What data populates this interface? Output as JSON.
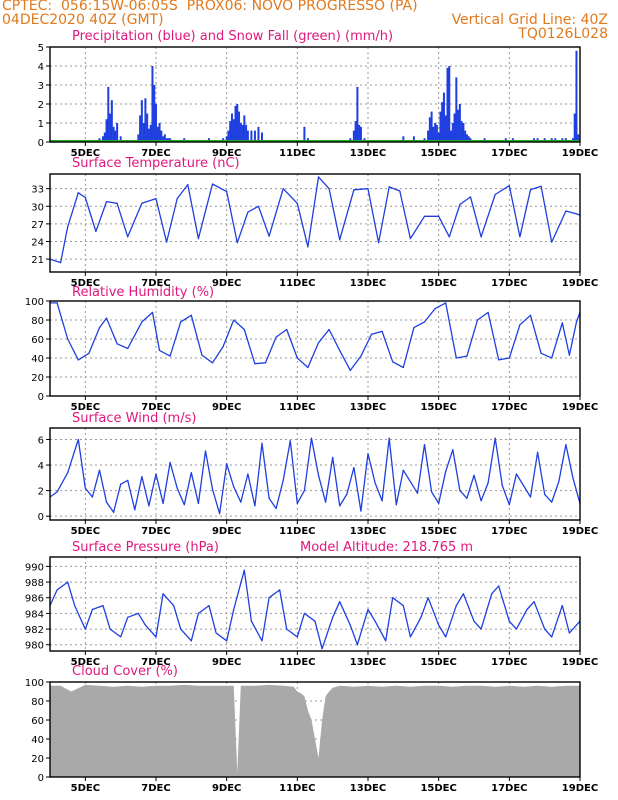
{
  "header": {
    "left1": "CPTEC:  056:15W-06:05S  PROX06: NOVO PROGRESSO (PA)",
    "left2": "04DEC2020 40Z (GMT)",
    "right1": "Vertical Grid Line: 40Z",
    "right2": "TQ0126L028"
  },
  "colors": {
    "header": "#e07a1f",
    "title": "#e0177d",
    "line": "#1f3fe0",
    "bar": "#1f3fe0",
    "snow": "#22aa22",
    "cloud": "#a9a9a9",
    "grid": "#9a9a9a"
  },
  "x_tick_labels": [
    "5DEC",
    "7DEC",
    "9DEC",
    "11DEC",
    "13DEC",
    "15DEC",
    "17DEC",
    "19DEC"
  ],
  "chart_data": [
    {
      "id": "precip",
      "type": "bar",
      "title": "Precipitation (blue) and Snow Fall (green) (mm/h)",
      "ylim": [
        0,
        5
      ],
      "yticks": [
        0,
        1,
        2,
        3,
        4,
        5
      ],
      "x_days": [
        5.3,
        5.4,
        5.5,
        5.55,
        5.6,
        5.65,
        5.7,
        5.75,
        5.8,
        5.85,
        5.9,
        6.0,
        6.5,
        6.55,
        6.6,
        6.65,
        6.7,
        6.75,
        6.8,
        6.85,
        6.9,
        6.95,
        7.0,
        7.05,
        7.1,
        7.15,
        7.2,
        7.25,
        7.3,
        7.35,
        7.4,
        7.8,
        8.3,
        8.5,
        8.9,
        9.0,
        9.05,
        9.1,
        9.15,
        9.2,
        9.25,
        9.3,
        9.35,
        9.4,
        9.45,
        9.5,
        9.55,
        9.6,
        9.7,
        9.8,
        9.9,
        10.0,
        11.2,
        11.3,
        12.5,
        12.6,
        12.65,
        12.7,
        12.75,
        12.8,
        12.9,
        14.0,
        14.3,
        14.6,
        14.7,
        14.75,
        14.8,
        14.85,
        14.9,
        14.95,
        15.0,
        15.05,
        15.1,
        15.15,
        15.2,
        15.25,
        15.3,
        15.35,
        15.4,
        15.45,
        15.5,
        15.55,
        15.6,
        15.65,
        15.7,
        15.75,
        15.8,
        15.85,
        15.9,
        16.3,
        16.7,
        16.9,
        17.1,
        17.4,
        17.7,
        17.8,
        17.9,
        18.0,
        18.1,
        18.2,
        18.3,
        18.4,
        18.5,
        18.6,
        18.7,
        18.8,
        18.85,
        18.9,
        18.95
      ],
      "values": [
        0.1,
        0.2,
        0.3,
        0.5,
        1.2,
        2.9,
        1.5,
        2.2,
        0.8,
        0.6,
        1.0,
        0.3,
        0.4,
        1.4,
        2.2,
        1.0,
        2.3,
        1.5,
        0.7,
        0.9,
        4.0,
        3.0,
        2.0,
        0.8,
        1.0,
        0.6,
        0.3,
        0.4,
        0.2,
        0.2,
        0.2,
        0.2,
        0.1,
        0.2,
        0.2,
        0.3,
        0.6,
        1.1,
        1.5,
        1.2,
        1.9,
        2.0,
        1.6,
        1.0,
        0.9,
        1.4,
        0.9,
        0.6,
        0.6,
        0.6,
        0.8,
        0.5,
        0.8,
        0.2,
        0.2,
        0.6,
        1.1,
        2.9,
        0.9,
        0.8,
        0.2,
        0.3,
        0.3,
        0.2,
        0.6,
        1.3,
        1.6,
        0.8,
        1.0,
        0.9,
        0.5,
        1.6,
        2.1,
        2.6,
        1.4,
        3.9,
        4.0,
        0.6,
        1.0,
        1.5,
        3.4,
        1.7,
        2.0,
        1.1,
        1.0,
        0.6,
        0.4,
        0.3,
        0.2,
        0.2,
        0.1,
        0.2,
        0.2,
        0.1,
        0.2,
        0.2,
        0.1,
        0.2,
        0.1,
        0.2,
        0.2,
        0.1,
        0.2,
        0.2,
        0.1,
        0.2,
        1.5,
        4.8,
        0.4
      ],
      "snow": 0
    },
    {
      "id": "temp",
      "type": "line",
      "title": "Surface Temperature (nC)",
      "ylim": [
        18.8,
        35.5
      ],
      "yticks": [
        21,
        24,
        27,
        30,
        33
      ],
      "x": [
        4.0,
        4.3,
        4.5,
        4.8,
        5.0,
        5.3,
        5.6,
        5.9,
        6.2,
        6.6,
        7.0,
        7.3,
        7.6,
        7.9,
        8.2,
        8.6,
        9.0,
        9.3,
        9.6,
        9.9,
        10.2,
        10.6,
        11.0,
        11.3,
        11.6,
        11.9,
        12.2,
        12.6,
        13.0,
        13.3,
        13.6,
        13.9,
        14.2,
        14.6,
        15.0,
        15.3,
        15.6,
        15.9,
        16.2,
        16.6,
        17.0,
        17.3,
        17.6,
        17.9,
        18.2,
        18.6,
        18.9,
        19.0
      ],
      "y": [
        21.0,
        20.4,
        26.5,
        32.3,
        31.5,
        25.7,
        30.8,
        30.5,
        24.8,
        30.5,
        31.3,
        23.9,
        31.3,
        33.7,
        24.5,
        33.8,
        32.5,
        23.8,
        29.0,
        30.0,
        24.9,
        33.0,
        30.5,
        23.1,
        35.0,
        33.0,
        24.3,
        32.8,
        33.0,
        23.8,
        33.3,
        32.6,
        24.5,
        28.3,
        28.3,
        24.8,
        30.3,
        31.6,
        24.8,
        32.0,
        33.5,
        24.8,
        32.8,
        33.4,
        23.9,
        29.2,
        28.7,
        28.5
      ]
    },
    {
      "id": "rh",
      "type": "line",
      "title": "Relative Humidity (%)",
      "ylim": [
        0,
        100
      ],
      "yticks": [
        0,
        20,
        40,
        60,
        80,
        100
      ],
      "x": [
        4.0,
        4.2,
        4.5,
        4.8,
        5.1,
        5.4,
        5.6,
        5.9,
        6.2,
        6.6,
        6.9,
        7.1,
        7.4,
        7.7,
        8.0,
        8.3,
        8.6,
        8.9,
        9.2,
        9.5,
        9.8,
        10.1,
        10.4,
        10.7,
        11.0,
        11.3,
        11.6,
        11.9,
        12.2,
        12.5,
        12.8,
        13.1,
        13.4,
        13.7,
        14.0,
        14.3,
        14.6,
        14.9,
        15.2,
        15.5,
        15.8,
        16.1,
        16.4,
        16.7,
        17.0,
        17.3,
        17.6,
        17.9,
        18.2,
        18.5,
        18.7,
        18.9,
        19.0
      ],
      "y": [
        98,
        98,
        60,
        38,
        45,
        72,
        82,
        55,
        50,
        78,
        88,
        48,
        42,
        78,
        85,
        43,
        35,
        52,
        80,
        70,
        34,
        35,
        62,
        70,
        40,
        30,
        56,
        70,
        48,
        27,
        42,
        65,
        68,
        36,
        30,
        72,
        78,
        92,
        98,
        40,
        42,
        80,
        88,
        38,
        40,
        75,
        85,
        45,
        40,
        77,
        43,
        78,
        88
      ]
    },
    {
      "id": "wind",
      "type": "line",
      "title": "Surface Wind (m/s)",
      "ylim": [
        -0.3,
        6.9
      ],
      "yticks": [
        0,
        2,
        4,
        6
      ],
      "x": [
        4.0,
        4.2,
        4.5,
        4.8,
        5.0,
        5.2,
        5.4,
        5.6,
        5.8,
        6.0,
        6.2,
        6.4,
        6.6,
        6.8,
        7.0,
        7.2,
        7.4,
        7.6,
        7.8,
        8.0,
        8.2,
        8.4,
        8.6,
        8.8,
        9.0,
        9.2,
        9.4,
        9.6,
        9.8,
        10.0,
        10.2,
        10.4,
        10.6,
        10.8,
        11.0,
        11.2,
        11.4,
        11.6,
        11.8,
        12.0,
        12.2,
        12.4,
        12.6,
        12.8,
        13.0,
        13.2,
        13.4,
        13.6,
        13.8,
        14.0,
        14.2,
        14.4,
        14.6,
        14.8,
        15.0,
        15.2,
        15.4,
        15.6,
        15.8,
        16.0,
        16.2,
        16.4,
        16.6,
        16.8,
        17.0,
        17.2,
        17.4,
        17.6,
        17.8,
        18.0,
        18.2,
        18.4,
        18.6,
        18.8,
        19.0
      ],
      "y": [
        1.5,
        1.9,
        3.4,
        6.0,
        2.2,
        1.5,
        3.6,
        1.1,
        0.3,
        2.5,
        2.8,
        0.5,
        3.1,
        0.8,
        3.3,
        1.0,
        4.2,
        2.2,
        0.9,
        3.4,
        1.0,
        5.1,
        2.1,
        0.2,
        4.1,
        2.3,
        1.1,
        3.3,
        0.8,
        5.7,
        1.4,
        0.6,
        2.8,
        5.9,
        1.0,
        2.0,
        6.1,
        3.2,
        1.1,
        4.6,
        0.8,
        1.7,
        3.8,
        0.4,
        4.9,
        2.6,
        1.2,
        6.1,
        0.9,
        3.6,
        2.7,
        1.8,
        5.6,
        1.9,
        1.0,
        3.5,
        5.2,
        2.0,
        1.4,
        3.2,
        1.2,
        2.6,
        6.1,
        2.4,
        0.9,
        3.3,
        2.4,
        1.5,
        5.0,
        1.7,
        1.1,
        2.7,
        5.6,
        3.0,
        1.0
      ]
    },
    {
      "id": "pres",
      "type": "line",
      "title": "Surface Pressure (hPa)",
      "annotation": "Model Altitude: 218.765 m",
      "ylim": [
        979.2,
        991.2
      ],
      "yticks": [
        980,
        982,
        984,
        986,
        988,
        990
      ],
      "x": [
        4.0,
        4.2,
        4.5,
        4.7,
        5.0,
        5.2,
        5.5,
        5.7,
        6.0,
        6.2,
        6.5,
        6.7,
        7.0,
        7.2,
        7.5,
        7.7,
        8.0,
        8.2,
        8.5,
        8.7,
        9.0,
        9.2,
        9.5,
        9.7,
        10.0,
        10.2,
        10.5,
        10.7,
        11.0,
        11.2,
        11.5,
        11.7,
        12.0,
        12.2,
        12.5,
        12.7,
        13.0,
        13.2,
        13.5,
        13.7,
        14.0,
        14.2,
        14.5,
        14.7,
        15.0,
        15.2,
        15.5,
        15.7,
        16.0,
        16.2,
        16.5,
        16.7,
        17.0,
        17.2,
        17.5,
        17.7,
        18.0,
        18.2,
        18.5,
        18.7,
        19.0
      ],
      "y": [
        985.0,
        987.0,
        988.0,
        985.0,
        982.0,
        984.5,
        985.0,
        982.0,
        981.0,
        983.5,
        984.0,
        982.5,
        981.0,
        986.5,
        985.0,
        982.0,
        980.5,
        984.0,
        985.0,
        981.5,
        980.5,
        984.5,
        989.5,
        983.0,
        980.5,
        986.0,
        987.0,
        982.0,
        981.0,
        984.0,
        983.0,
        979.5,
        983.5,
        985.5,
        982.5,
        980.0,
        984.5,
        983.0,
        980.5,
        986.0,
        985.0,
        981.0,
        983.5,
        986.0,
        982.5,
        981.0,
        985.0,
        986.5,
        983.0,
        982.0,
        986.5,
        987.5,
        983.0,
        982.0,
        984.5,
        985.5,
        982.0,
        981.0,
        985.0,
        981.5,
        983.0
      ]
    },
    {
      "id": "cloud",
      "type": "area",
      "title": "Cloud Cover (%)",
      "ylim": [
        0,
        100
      ],
      "yticks": [
        0,
        20,
        40,
        60,
        80,
        100
      ],
      "x": [
        4.0,
        4.3,
        4.6,
        5.0,
        5.4,
        5.8,
        6.2,
        6.6,
        7.0,
        7.4,
        7.8,
        8.2,
        8.6,
        9.0,
        9.2,
        9.3,
        9.4,
        9.8,
        10.2,
        10.6,
        10.9,
        11.0,
        11.1,
        11.2,
        11.3,
        11.4,
        11.5,
        11.6,
        11.7,
        11.8,
        11.9,
        12.0,
        12.2,
        12.6,
        13.0,
        13.4,
        13.8,
        14.2,
        14.6,
        15.0,
        15.4,
        15.8,
        16.2,
        16.6,
        17.0,
        17.4,
        17.8,
        18.2,
        18.6,
        19.0
      ],
      "y": [
        96,
        96,
        90,
        97,
        96,
        95,
        96,
        95,
        96,
        96,
        97,
        96,
        96,
        96,
        96,
        5,
        96,
        96,
        97,
        96,
        95,
        90,
        88,
        85,
        70,
        60,
        40,
        20,
        60,
        85,
        90,
        94,
        96,
        95,
        96,
        95,
        96,
        95,
        96,
        96,
        95,
        96,
        96,
        95,
        96,
        95,
        96,
        95,
        96,
        96
      ]
    }
  ]
}
